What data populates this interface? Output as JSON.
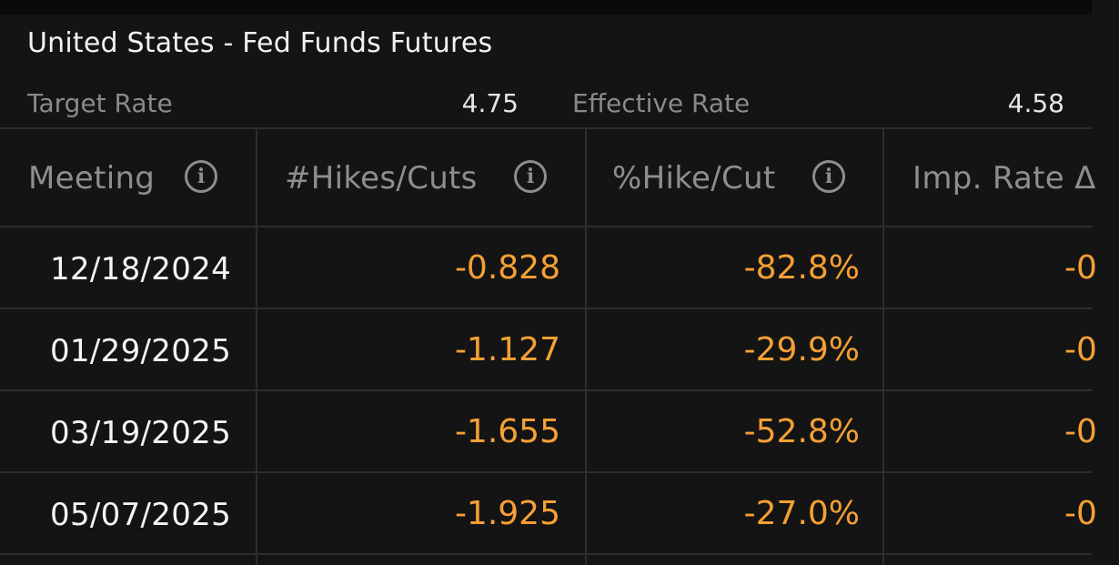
{
  "title": "United States - Fed Funds Futures",
  "target_rate": {
    "label": "Target Rate",
    "value": "4.75"
  },
  "effective_rate": {
    "label": "Effective Rate",
    "value": "4.58"
  },
  "columns": [
    {
      "label": "Meeting",
      "has_info": true
    },
    {
      "label": "#Hikes/Cuts",
      "has_info": true
    },
    {
      "label": "%Hike/Cut",
      "has_info": true
    },
    {
      "label": "Imp. Rate Δ",
      "has_info": false
    }
  ],
  "rows": [
    {
      "meeting": "12/18/2024",
      "hikes_cuts": "-0.828",
      "pct": "-82.8%",
      "imp": "-0"
    },
    {
      "meeting": "01/29/2025",
      "hikes_cuts": "-1.127",
      "pct": "-29.9%",
      "imp": "-0"
    },
    {
      "meeting": "03/19/2025",
      "hikes_cuts": "-1.655",
      "pct": "-52.8%",
      "imp": "-0"
    },
    {
      "meeting": "05/07/2025",
      "hikes_cuts": "-1.925",
      "pct": "-27.0%",
      "imp": "-0"
    }
  ],
  "colors": {
    "background": "#141414",
    "negative_value": "#f5a035",
    "header_text": "#8e8e8e",
    "grid": "#2d2d2d"
  },
  "icons": {
    "info": "info-circle-icon"
  }
}
